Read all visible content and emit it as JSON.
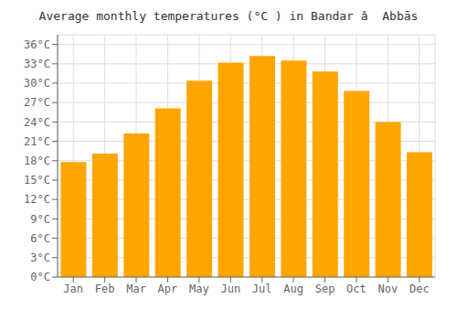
{
  "chart_data": {
    "type": "bar",
    "title": "Average monthly temperatures (°C ) in Bandar â  Abbās",
    "categories": [
      "Jan",
      "Feb",
      "Mar",
      "Apr",
      "May",
      "Jun",
      "Jul",
      "Aug",
      "Sep",
      "Oct",
      "Nov",
      "Dec"
    ],
    "values": [
      17.8,
      19.1,
      22.2,
      26.1,
      30.4,
      33.2,
      34.2,
      33.5,
      31.8,
      28.8,
      24.0,
      19.3
    ],
    "color": "#FFA500",
    "ylim": [
      0,
      37.5
    ],
    "yticks": [
      {
        "value": 0,
        "label": "0°C"
      },
      {
        "value": 3,
        "label": "3°C"
      },
      {
        "value": 6,
        "label": "6°C"
      },
      {
        "value": 9,
        "label": "9°C"
      },
      {
        "value": 12,
        "label": "12°C"
      },
      {
        "value": 15,
        "label": "15°C"
      },
      {
        "value": 18,
        "label": "18°C"
      },
      {
        "value": 21,
        "label": "21°C"
      },
      {
        "value": 24,
        "label": "24°C"
      },
      {
        "value": 27,
        "label": "27°C"
      },
      {
        "value": 30,
        "label": "30°C"
      },
      {
        "value": 33,
        "label": "33°C"
      },
      {
        "value": 36,
        "label": "36°C"
      }
    ],
    "grid": true
  }
}
